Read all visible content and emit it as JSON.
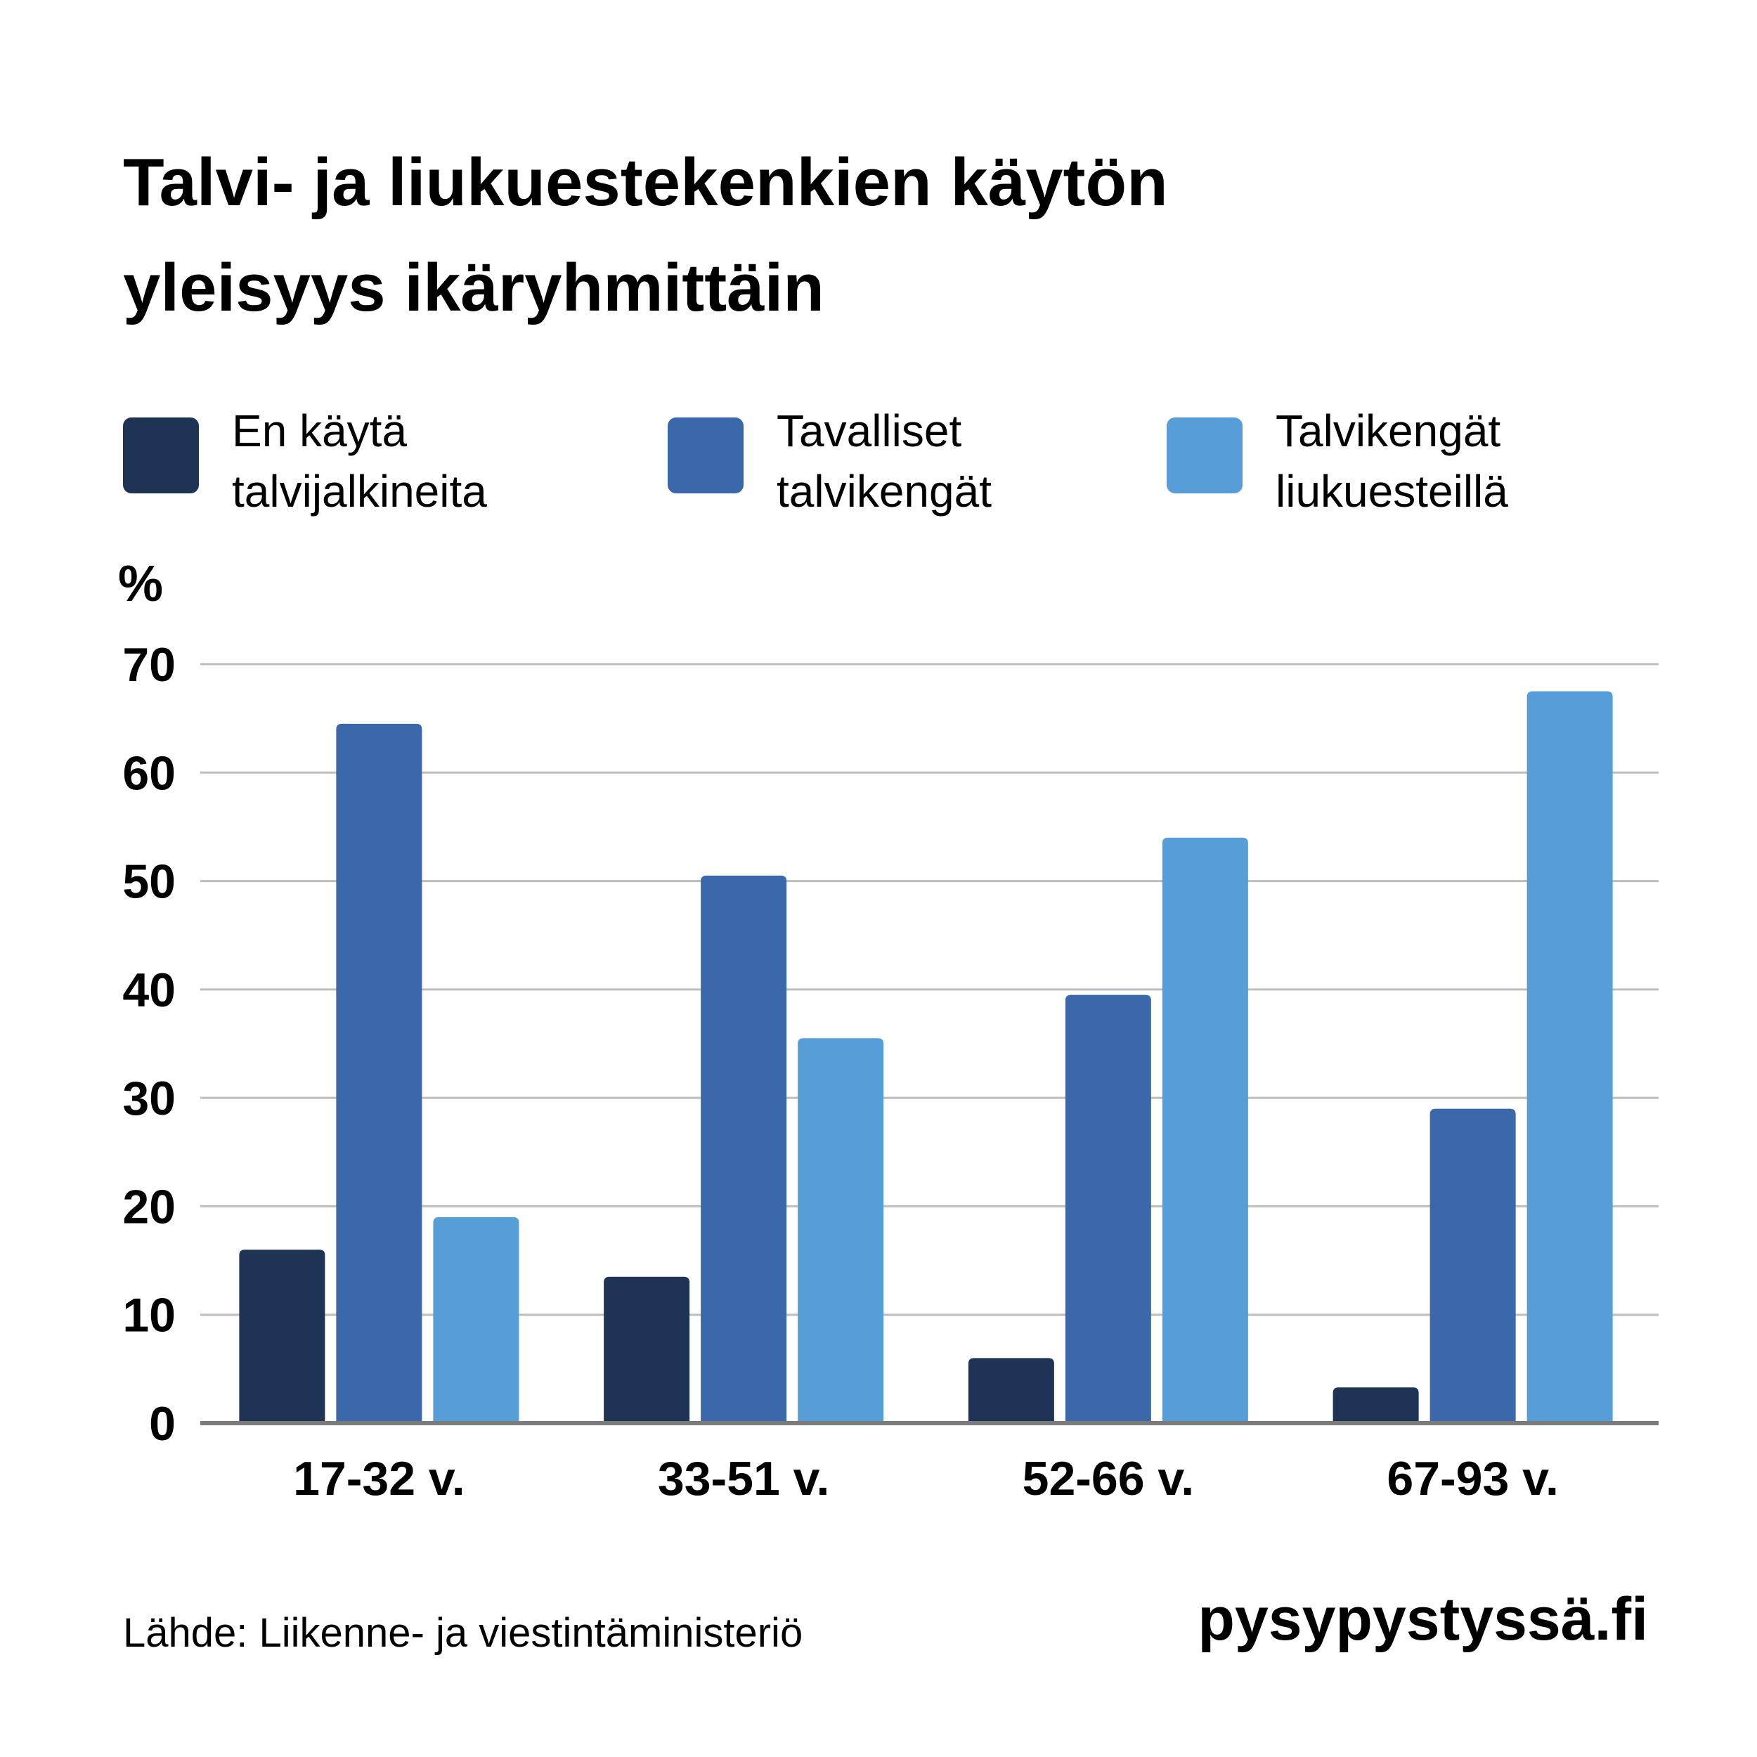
{
  "title": {
    "line1": "Talvi- ja liukuestekenkien käytön",
    "line2": "yleisyys ikäryhmittäin"
  },
  "legend": [
    {
      "line1": "En käytä",
      "line2": "talvijalkineita",
      "color": "#1f3354"
    },
    {
      "line1": "Tavalliset",
      "line2": "talvikengät",
      "color": "#3b67ab"
    },
    {
      "line1": "Talvikengät",
      "line2": "liukuesteillä",
      "color": "#579dd7"
    }
  ],
  "footer": {
    "source": "Lähde: Liikenne- ja viestintäministeriö",
    "brand": "pysypystyssä.fi"
  },
  "chart_data": {
    "type": "bar",
    "ylabel": "%",
    "ylim": [
      0,
      70
    ],
    "yticks": [
      0,
      10,
      20,
      30,
      40,
      50,
      60,
      70
    ],
    "grid": true,
    "legend_position": "top",
    "categories": [
      "17-32 v.",
      "33-51 v.",
      "52-66 v.",
      "67-93 v."
    ],
    "series": [
      {
        "name": "En käytä talvijalkineita",
        "color": "#1f3354",
        "values": [
          16,
          13.5,
          6,
          3.3
        ]
      },
      {
        "name": "Tavalliset talvikengät",
        "color": "#3b67ab",
        "values": [
          64.5,
          50.5,
          39.5,
          29
        ]
      },
      {
        "name": "Talvikengät liukuesteillä",
        "color": "#579dd7",
        "values": [
          19,
          35.5,
          54,
          67.5
        ]
      }
    ]
  }
}
